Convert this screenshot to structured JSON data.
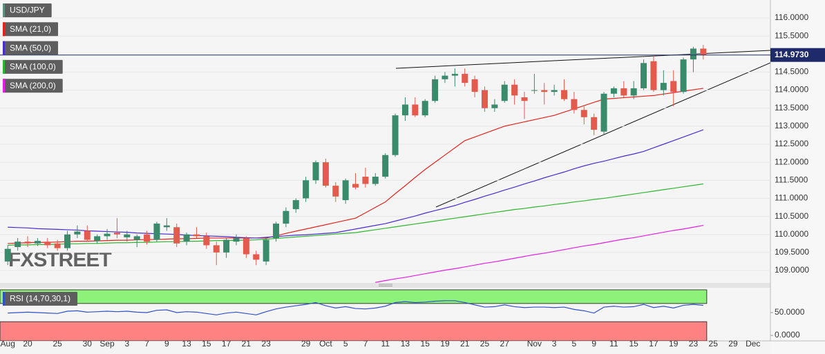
{
  "chart_data": [
    {
      "type": "candlestick",
      "watermark": "FXSTREET",
      "categories": [
        "Aug",
        null,
        "20",
        null,
        null,
        "25",
        null,
        null,
        "30",
        null,
        "Sep",
        null,
        "3",
        null,
        "7",
        null,
        "9",
        null,
        "13",
        null,
        "15",
        null,
        "17",
        null,
        "21",
        null,
        "23",
        null,
        null,
        null,
        "29",
        null,
        "Oct",
        null,
        "5",
        null,
        "7",
        null,
        "11",
        null,
        "13",
        null,
        "15",
        null,
        "19",
        null,
        "21",
        null,
        "25",
        null,
        "27",
        null,
        null,
        "Nov",
        null,
        "3",
        null,
        "5",
        null,
        "9",
        null,
        "11",
        null,
        "15",
        null,
        "17",
        null,
        "19",
        null,
        "23",
        null,
        "25",
        null,
        "29",
        null,
        "Dec"
      ],
      "series": [
        {
          "name": "USD/JPY",
          "color": "#5d8f80",
          "up_color": "#3a8a6c",
          "down_color": "#e35b4c",
          "open": [
            109.25,
            109.65,
            109.8,
            109.75,
            109.8,
            109.75,
            109.62,
            110.0,
            110.1,
            109.82,
            109.95,
            110.05,
            109.92,
            109.85,
            110.0,
            109.85,
            110.2,
            110.2,
            109.8,
            110.0,
            109.95,
            109.7,
            109.5,
            109.8,
            109.9,
            109.45,
            109.25,
            109.9,
            110.3,
            110.7,
            111.0,
            111.5,
            112.0,
            111.35,
            110.95,
            111.4,
            111.6,
            111.4,
            111.6,
            112.2,
            113.3,
            113.6,
            113.3,
            113.7,
            114.3,
            114.4,
            114.45,
            114.3,
            114.0,
            113.5,
            113.7,
            114.15,
            113.8,
            114.0,
            114.0,
            113.95,
            114.0,
            113.75,
            113.45,
            113.25,
            112.85,
            113.9,
            114.05,
            113.85,
            114.05,
            114.8,
            114.0,
            114.25,
            113.95,
            114.85,
            115.15,
            null,
            null,
            null,
            null,
            null
          ],
          "high": [
            109.7,
            109.9,
            109.95,
            109.9,
            109.9,
            109.85,
            110.1,
            110.25,
            110.25,
            110.0,
            110.15,
            110.45,
            110.1,
            110.0,
            110.1,
            110.35,
            110.45,
            110.3,
            110.05,
            110.2,
            110.05,
            109.8,
            109.9,
            110.0,
            109.95,
            109.55,
            109.9,
            110.35,
            110.75,
            111.0,
            111.6,
            112.05,
            112.1,
            111.45,
            111.55,
            111.7,
            111.85,
            111.7,
            112.25,
            113.35,
            113.8,
            113.8,
            113.75,
            114.4,
            114.5,
            114.6,
            114.6,
            114.4,
            114.1,
            113.75,
            114.25,
            114.3,
            113.95,
            114.45,
            114.2,
            114.15,
            114.3,
            113.95,
            113.55,
            113.35,
            113.95,
            114.1,
            114.25,
            114.25,
            114.85,
            114.95,
            114.55,
            114.55,
            114.9,
            115.2,
            115.25,
            null,
            null,
            null,
            null,
            null
          ],
          "low": [
            109.15,
            109.55,
            109.65,
            109.68,
            109.62,
            109.55,
            109.55,
            109.9,
            109.8,
            109.75,
            109.85,
            109.9,
            109.8,
            109.65,
            109.72,
            109.8,
            110.1,
            109.65,
            109.7,
            109.9,
            109.6,
            109.15,
            109.35,
            109.7,
            109.35,
            109.15,
            109.15,
            109.8,
            110.2,
            110.6,
            110.9,
            111.4,
            111.3,
            110.9,
            110.85,
            111.25,
            111.3,
            111.35,
            111.55,
            112.15,
            113.15,
            113.25,
            113.25,
            113.65,
            114.2,
            114.1,
            114.1,
            113.8,
            113.4,
            113.4,
            113.65,
            113.6,
            113.2,
            113.9,
            113.6,
            113.85,
            113.7,
            113.35,
            113.05,
            112.75,
            112.75,
            113.8,
            113.8,
            113.75,
            114.0,
            113.95,
            113.85,
            113.55,
            113.9,
            114.5,
            114.85,
            null,
            null,
            null,
            null,
            null
          ],
          "close": [
            109.6,
            109.8,
            109.75,
            109.82,
            109.7,
            109.62,
            110.0,
            110.08,
            109.85,
            109.95,
            110.02,
            110.0,
            110.0,
            109.95,
            109.8,
            110.3,
            110.25,
            109.75,
            110.0,
            109.95,
            109.7,
            109.5,
            109.85,
            109.9,
            109.45,
            109.3,
            109.85,
            110.3,
            110.65,
            110.95,
            111.5,
            112.0,
            111.35,
            111.05,
            111.5,
            111.3,
            111.4,
            111.6,
            112.2,
            113.3,
            113.6,
            113.3,
            113.7,
            114.3,
            114.4,
            114.45,
            114.2,
            113.95,
            113.5,
            113.6,
            114.15,
            113.85,
            113.7,
            114.0,
            113.95,
            114.0,
            113.75,
            113.45,
            113.25,
            112.9,
            113.9,
            114.05,
            113.85,
            114.05,
            114.75,
            114.0,
            114.2,
            113.95,
            114.85,
            115.15,
            114.973,
            null,
            null,
            null,
            null,
            null
          ]
        },
        {
          "name": "SMA (21,0)",
          "color": "#e3241c",
          "values": [
            109.75,
            109.76,
            109.77,
            109.78,
            109.78,
            109.79,
            109.8,
            109.81,
            109.81,
            109.82,
            109.83,
            109.84,
            109.84,
            109.85,
            109.86,
            109.86,
            109.87,
            109.88,
            109.88,
            109.89,
            109.9,
            109.9,
            109.9,
            109.9,
            109.9,
            109.9,
            109.9,
            109.96,
            110.03,
            110.09,
            110.15,
            110.21,
            110.27,
            110.33,
            110.39,
            110.45,
            110.6,
            110.75,
            110.9,
            111.13,
            111.35,
            111.58,
            111.8,
            112.0,
            112.2,
            112.4,
            112.6,
            112.7,
            112.8,
            112.9,
            113.0,
            113.06,
            113.12,
            113.18,
            113.24,
            113.3,
            113.39,
            113.48,
            113.57,
            113.66,
            113.75,
            113.77,
            113.79,
            113.81,
            113.83,
            113.85,
            113.89,
            113.93,
            113.97,
            114.01,
            114.05,
            null,
            null,
            null,
            null,
            null
          ]
        },
        {
          "name": "SMA (50,0)",
          "color": "#4a2bd0",
          "values": [
            110.2,
            110.19,
            110.18,
            110.16,
            110.15,
            110.14,
            110.13,
            110.12,
            110.1,
            110.09,
            110.08,
            110.07,
            110.06,
            110.04,
            110.03,
            110.02,
            110.01,
            110.0,
            109.98,
            109.97,
            109.96,
            109.95,
            109.94,
            109.92,
            109.91,
            109.9,
            109.92,
            109.94,
            109.96,
            109.98,
            109.99,
            110.01,
            110.03,
            110.05,
            110.1,
            110.15,
            110.2,
            110.25,
            110.3,
            110.37,
            110.44,
            110.51,
            110.59,
            110.66,
            110.73,
            110.8,
            110.89,
            110.97,
            111.06,
            111.14,
            111.23,
            111.31,
            111.4,
            111.48,
            111.57,
            111.65,
            111.73,
            111.82,
            111.9,
            111.97,
            112.03,
            112.1,
            112.17,
            112.23,
            112.3,
            112.4,
            112.5,
            112.6,
            112.7,
            112.8,
            112.9,
            null,
            null,
            null,
            null,
            null
          ]
        },
        {
          "name": "SMA (100,0)",
          "color": "#2fb52f",
          "values": [
            109.7,
            109.71,
            109.71,
            109.72,
            109.72,
            109.73,
            109.74,
            109.74,
            109.75,
            109.75,
            109.76,
            109.77,
            109.77,
            109.78,
            109.78,
            109.79,
            109.8,
            109.8,
            109.81,
            109.81,
            109.82,
            109.83,
            109.83,
            109.84,
            109.84,
            109.85,
            109.87,
            109.89,
            109.91,
            109.93,
            109.95,
            109.97,
            109.99,
            110.01,
            110.03,
            110.05,
            110.09,
            110.13,
            110.17,
            110.21,
            110.25,
            110.29,
            110.33,
            110.37,
            110.41,
            110.45,
            110.49,
            110.53,
            110.57,
            110.61,
            110.65,
            110.69,
            110.72,
            110.76,
            110.79,
            110.83,
            110.86,
            110.9,
            110.93,
            110.97,
            111.0,
            111.04,
            111.08,
            111.12,
            111.16,
            111.2,
            111.24,
            111.28,
            111.32,
            111.36,
            111.4,
            null,
            null,
            null,
            null,
            null
          ]
        },
        {
          "name": "SMA (200,0)",
          "color": "#e21fe2",
          "values": [
            null,
            null,
            null,
            null,
            null,
            null,
            null,
            null,
            null,
            null,
            null,
            null,
            null,
            null,
            null,
            null,
            null,
            null,
            null,
            null,
            null,
            null,
            null,
            null,
            null,
            null,
            null,
            null,
            null,
            null,
            null,
            null,
            null,
            null,
            null,
            null,
            null,
            108.67,
            108.72,
            108.77,
            108.81,
            108.86,
            108.91,
            108.96,
            109.01,
            109.05,
            109.1,
            109.15,
            109.2,
            109.24,
            109.29,
            109.34,
            109.39,
            109.44,
            109.48,
            109.53,
            109.58,
            109.63,
            109.68,
            109.72,
            109.77,
            109.82,
            109.87,
            109.91,
            109.96,
            110.01,
            110.06,
            110.11,
            110.15,
            110.2,
            110.25,
            null,
            null,
            null,
            null,
            null
          ]
        }
      ],
      "ylim": [
        108.656,
        116.497
      ],
      "yticks": [
        {
          "value": 109,
          "label": "109.0000"
        },
        {
          "value": 109.5,
          "label": "109.5000"
        },
        {
          "value": 110,
          "label": "110.0000"
        },
        {
          "value": 110.5,
          "label": "110.5000"
        },
        {
          "value": 111,
          "label": "111.0000"
        },
        {
          "value": 111.5,
          "label": "111.5000"
        },
        {
          "value": 112,
          "label": "112.0000"
        },
        {
          "value": 112.5,
          "label": "112.5000"
        },
        {
          "value": 113,
          "label": "113.0000"
        },
        {
          "value": 113.5,
          "label": "113.5000"
        },
        {
          "value": 114,
          "label": "114.0000"
        },
        {
          "value": 114.5,
          "label": "114.5000"
        },
        {
          "value": 115.5,
          "label": "115.5000"
        },
        {
          "value": 116,
          "label": "116.0000"
        }
      ],
      "grid": true,
      "price_line": {
        "value": 114.973,
        "label": "114.9730",
        "color": "#1f2a6b"
      }
    },
    {
      "type": "line",
      "series": [
        {
          "name": "RSI (14,70,30,1)",
          "color": "#3050c8",
          "values": [
            49,
            50,
            51,
            50,
            49,
            48,
            53,
            54,
            51,
            52,
            53,
            52,
            53,
            51,
            50,
            55,
            56,
            50,
            52,
            51,
            48,
            45,
            49,
            51,
            48,
            45,
            52,
            58,
            62,
            65,
            68,
            72,
            65,
            60,
            63,
            59,
            58,
            60,
            64,
            72,
            74,
            72,
            73,
            75,
            76,
            76,
            72,
            67,
            62,
            63,
            67,
            63,
            61,
            62,
            62,
            61,
            62,
            57,
            54,
            49,
            62,
            64,
            62,
            63,
            68,
            61,
            64,
            60,
            66,
            68,
            66,
            null,
            null,
            null,
            null,
            null
          ]
        }
      ],
      "ylim": [
        -12.1,
        103
      ],
      "yticks": [
        {
          "value": 0,
          "label": "0.0000"
        },
        {
          "value": 50,
          "label": "50.0000"
        }
      ],
      "bands": [
        {
          "from": 70,
          "to": 100,
          "color": "#8cf27a"
        },
        {
          "from": -12.1,
          "to": 30,
          "color": "#ff8282"
        }
      ]
    }
  ]
}
